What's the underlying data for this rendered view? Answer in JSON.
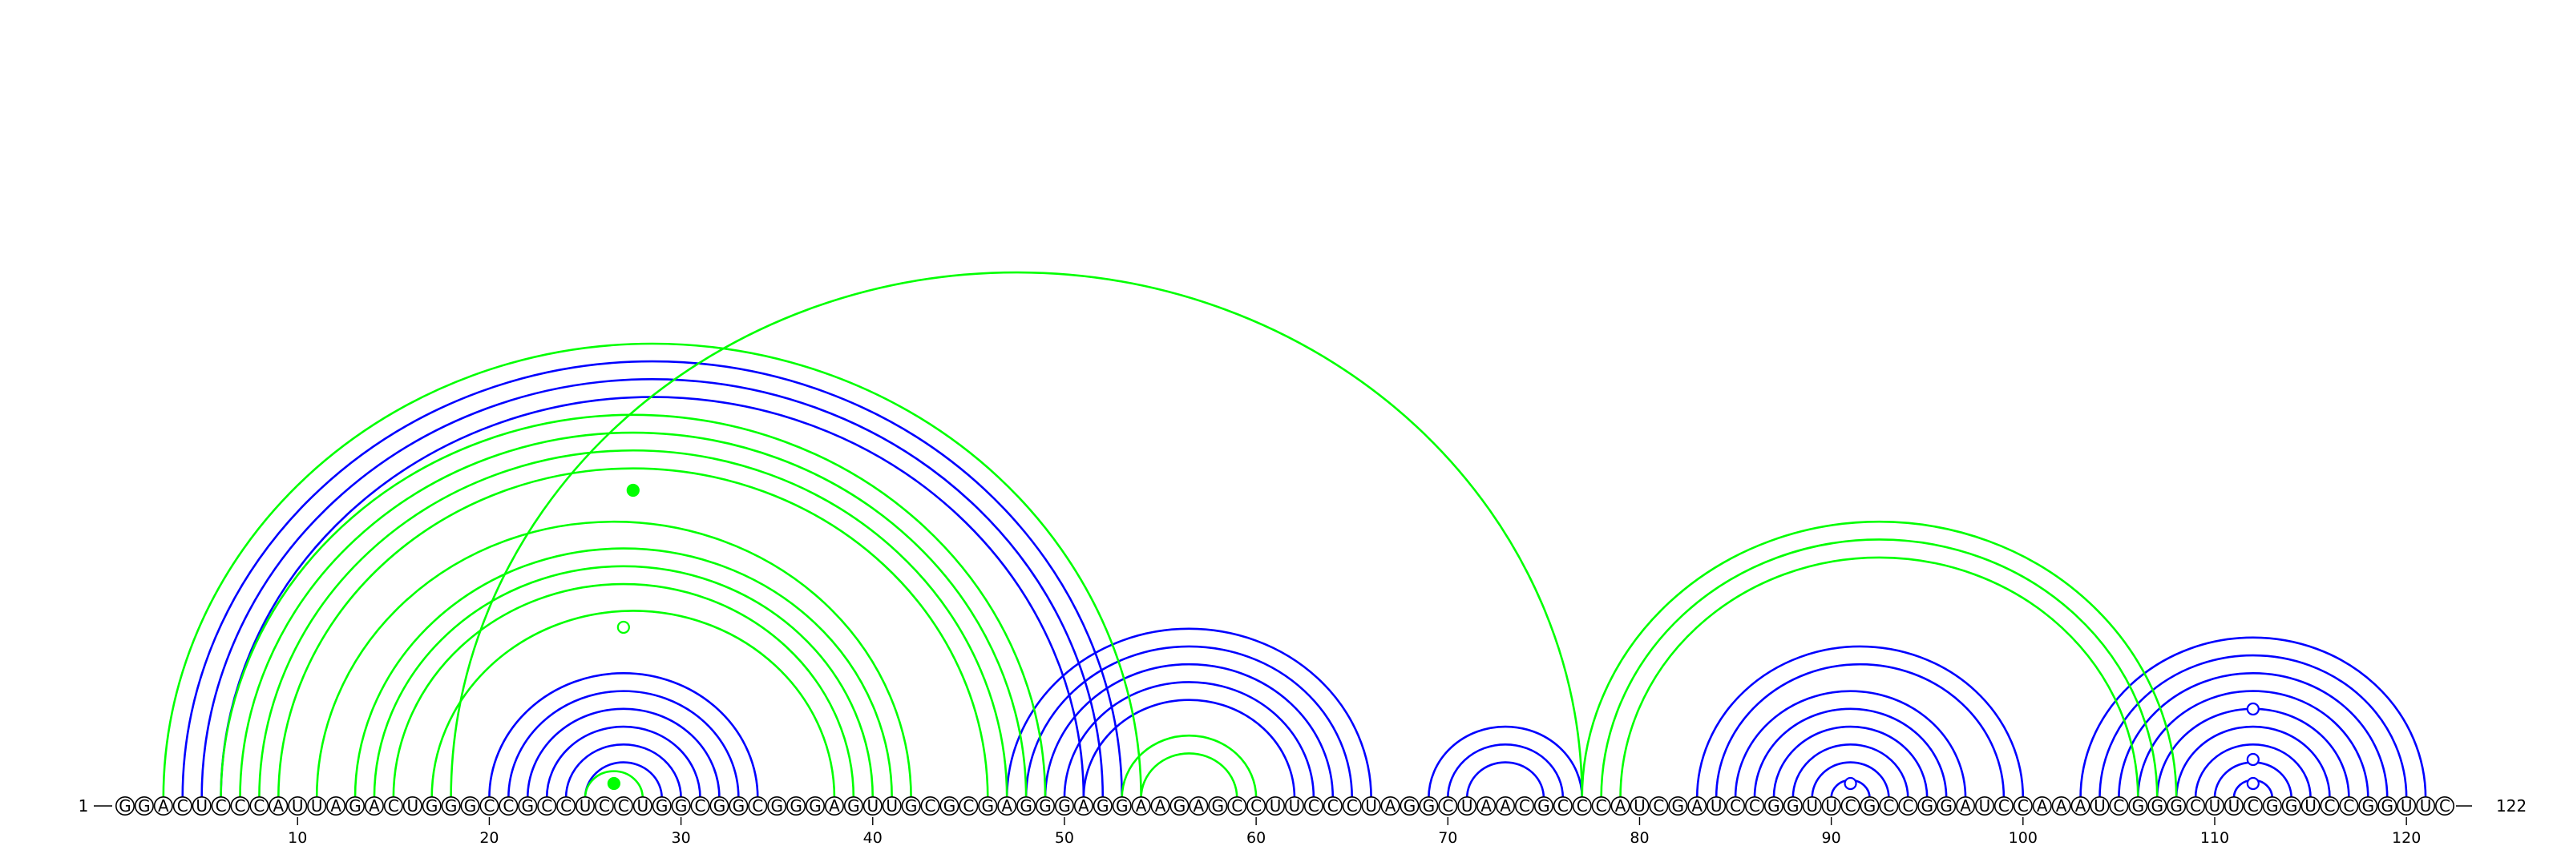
{
  "sequence": "GGACUCCCAUUAGACUGGGCCGCCUCCUGGCGGCGGGAGUUGCGCGAGGGAGGAAGAGCCUUCCCUAGGCUAACGCCCAUCGAUCCGGUUCGCCGGAUCCAAAUCGGGCUUCGGUCCGGUUC",
  "start_label": "1",
  "end_label": "122",
  "tick_labels": [
    "10",
    "20",
    "30",
    "40",
    "50",
    "60",
    "70",
    "80",
    "90",
    "100",
    "110",
    "120"
  ],
  "tick_positions": [
    10,
    20,
    30,
    40,
    50,
    60,
    70,
    80,
    90,
    100,
    110,
    120
  ],
  "colors": {
    "blue": "#0000ff",
    "green": "#00ff00",
    "black": "#000000"
  },
  "arc_groups": [
    {
      "color": "blue",
      "pairs": [
        [
          4,
          53
        ],
        [
          5,
          52
        ],
        [
          6,
          51
        ],
        [
          20,
          34
        ],
        [
          21,
          33
        ],
        [
          22,
          32
        ],
        [
          23,
          31
        ],
        [
          24,
          30
        ],
        [
          25,
          29
        ],
        [
          47,
          66
        ],
        [
          48,
          65
        ],
        [
          49,
          64
        ],
        [
          50,
          63
        ],
        [
          51,
          62
        ],
        [
          69,
          77
        ],
        [
          70,
          76
        ],
        [
          71,
          75
        ],
        [
          83,
          100
        ],
        [
          84,
          99
        ],
        [
          85,
          97
        ],
        [
          86,
          96
        ],
        [
          87,
          95
        ],
        [
          88,
          94
        ],
        [
          89,
          93
        ],
        [
          90,
          92
        ],
        [
          103,
          121
        ],
        [
          104,
          120
        ],
        [
          105,
          119
        ],
        [
          106,
          118
        ],
        [
          107,
          117
        ],
        [
          108,
          116
        ],
        [
          109,
          115
        ],
        [
          110,
          114
        ],
        [
          111,
          113
        ]
      ]
    },
    {
      "color": "green",
      "pairs": [
        [
          3,
          54
        ],
        [
          6,
          49
        ],
        [
          7,
          48
        ],
        [
          8,
          47
        ],
        [
          9,
          46
        ],
        [
          11,
          42
        ],
        [
          13,
          41
        ],
        [
          14,
          40
        ],
        [
          15,
          39
        ],
        [
          17,
          38
        ],
        [
          18,
          77
        ],
        [
          25,
          28
        ],
        [
          53,
          60
        ],
        [
          54,
          59
        ],
        [
          77,
          108
        ],
        [
          78,
          107
        ],
        [
          79,
          106
        ]
      ]
    }
  ],
  "markers": [
    {
      "color": "green",
      "filled": true,
      "position": 27.5
    },
    {
      "color": "green",
      "filled": false,
      "position": 27
    },
    {
      "color": "green",
      "filled": true,
      "position": 26.5
    },
    {
      "color": "blue",
      "filled": false,
      "position": 91
    },
    {
      "color": "blue",
      "filled": false,
      "position": 112
    },
    {
      "color": "blue",
      "filled": false,
      "position": 112
    },
    {
      "color": "blue",
      "filled": false,
      "position": 112
    }
  ]
}
